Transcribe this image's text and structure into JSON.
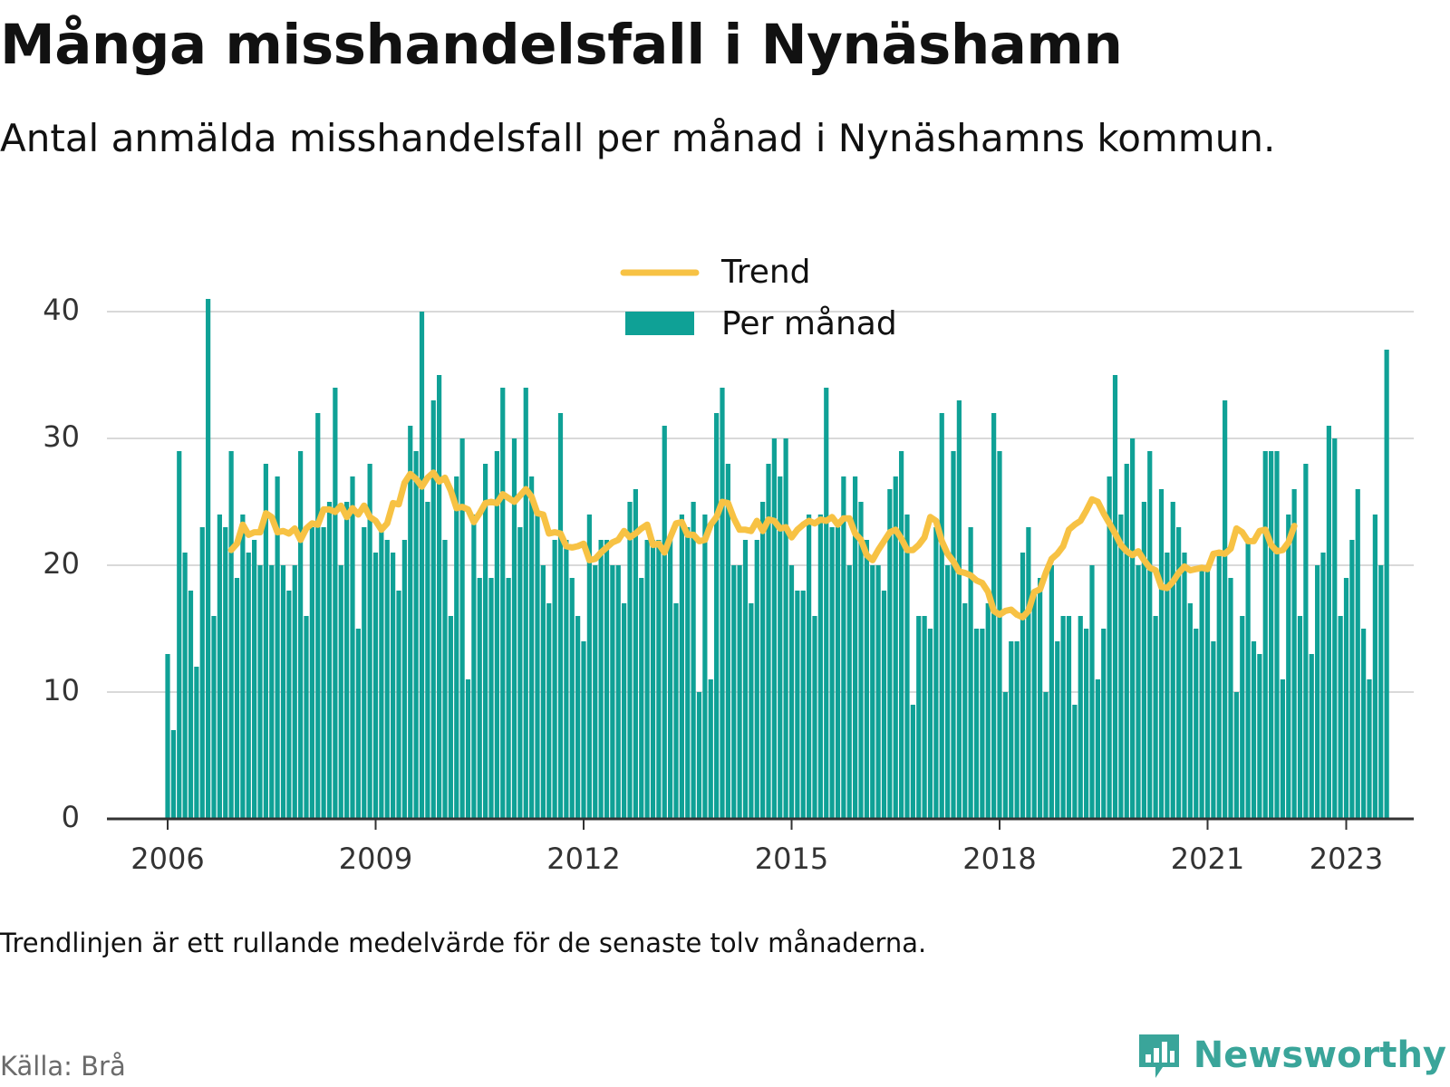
{
  "header": {
    "title": "Många misshandelsfall i Nynäshamn",
    "subtitle": "Antal anmälda misshandelsfall per månad i Nynäshamns kommun."
  },
  "footer": {
    "note": "Trendlinjen är ett rullande medelvärde för de senaste tolv månaderna.",
    "source": "Källa: Brå",
    "brand": "Newsworthy",
    "brand_icon": "bar-chart-speech-bubble-icon"
  },
  "colors": {
    "bars": "#0fa196",
    "trend": "#f7c244",
    "grid": "#d9d9d9",
    "axis": "#333333",
    "brand": "#3aa59a"
  },
  "chart_data": {
    "type": "bar",
    "x_start": "2006-01",
    "x_end": "2023-02",
    "x_ticks": [
      "2006",
      "2009",
      "2012",
      "2015",
      "2018",
      "2021",
      "2023"
    ],
    "ylim": [
      0,
      42
    ],
    "y_ticks": [
      0,
      10,
      20,
      30,
      40
    ],
    "grid": true,
    "legend_position": "top-center",
    "series": [
      {
        "name": "Per månad",
        "type": "bar",
        "values": [
          13,
          7,
          29,
          21,
          18,
          12,
          23,
          41,
          16,
          24,
          23,
          29,
          19,
          24,
          21,
          22,
          20,
          28,
          20,
          27,
          20,
          18,
          20,
          29,
          16,
          23,
          32,
          23,
          25,
          34,
          20,
          25,
          27,
          15,
          23,
          28,
          21,
          23,
          22,
          21,
          18,
          22,
          31,
          29,
          40,
          25,
          33,
          35,
          22,
          16,
          27,
          30,
          11,
          24,
          19,
          28,
          19,
          29,
          34,
          19,
          30,
          23,
          34,
          27,
          24,
          20,
          17,
          22,
          32,
          22,
          19,
          16,
          14,
          24,
          20,
          22,
          22,
          20,
          20,
          17,
          25,
          26,
          19,
          22,
          22,
          22,
          31,
          22,
          17,
          24,
          23,
          25,
          10,
          24,
          11,
          32,
          34,
          28,
          20,
          20,
          22,
          17,
          22,
          25,
          28,
          30,
          27,
          30,
          20,
          18,
          18,
          24,
          16,
          24,
          34,
          23,
          23,
          27,
          20,
          27,
          25,
          22,
          20,
          20,
          18,
          26,
          27,
          29,
          24,
          9,
          16,
          16,
          15,
          23,
          32,
          20,
          29,
          33,
          17,
          23,
          15,
          15,
          17,
          32,
          29,
          10,
          14,
          14,
          21,
          23,
          18,
          19,
          10,
          20,
          14,
          16,
          16,
          9,
          16,
          15,
          20,
          11,
          15,
          27,
          35,
          24,
          28,
          30,
          20,
          25,
          29,
          16,
          26,
          21,
          25,
          23,
          21,
          17,
          15,
          20,
          20,
          14,
          21,
          33,
          19,
          10,
          16,
          22,
          14,
          13,
          29,
          29,
          29,
          11,
          24,
          26,
          16,
          28,
          13,
          20,
          21,
          31,
          30,
          16,
          19,
          22,
          26,
          15,
          11,
          24,
          20,
          37
        ],
        "color": "#0fa196"
      },
      {
        "name": "Trend",
        "type": "line",
        "start": "2006-12",
        "values": [
          21.2,
          21.7,
          23.2,
          22.4,
          22.6,
          22.6,
          24.1,
          23.8,
          22.6,
          22.7,
          22.5,
          22.9,
          22,
          22.9,
          23.3,
          23.2,
          24.4,
          24.4,
          24.2,
          24.7,
          23.8,
          24.5,
          24,
          24.7,
          23.8,
          23.5,
          22.8,
          23.3,
          24.9,
          24.8,
          26.5,
          27.2,
          26.8,
          26.2,
          26.9,
          27.3,
          26.6,
          26.9,
          25.9,
          24.5,
          24.6,
          24.4,
          23.4,
          24.1,
          24.9,
          25,
          24.9,
          25.6,
          25.3,
          25,
          25.5,
          26,
          25.4,
          24.1,
          24,
          22.5,
          22.6,
          22.5,
          21.5,
          21.4,
          21.5,
          21.7,
          20.4,
          20.5,
          21,
          21.4,
          21.8,
          22,
          22.7,
          22.2,
          22.5,
          22.9,
          23.2,
          21.6,
          21.7,
          21,
          22.2,
          23.3,
          23.4,
          22.4,
          22.4,
          21.9,
          22,
          23.2,
          23.8,
          25,
          24.9,
          23.7,
          22.8,
          22.8,
          22.7,
          23.5,
          22.7,
          23.6,
          23.5,
          22.9,
          23,
          22.2,
          22.8,
          23.2,
          23.5,
          23.3,
          23.6,
          23.5,
          23.8,
          23.2,
          23.7,
          23.7,
          22.5,
          22,
          20.8,
          20.4,
          21.2,
          21.9,
          22.6,
          22.8,
          22.1,
          21.2,
          21.2,
          21.6,
          22.2,
          23.8,
          23.5,
          21.9,
          20.9,
          20.3,
          19.5,
          19.4,
          19.2,
          18.8,
          18.6,
          17.9,
          16.4,
          16.1,
          16.4,
          16.5,
          16.1,
          15.9,
          16.4,
          17.9,
          18.1,
          19.4,
          20.5,
          20.9,
          21.5,
          22.8,
          23.2,
          23.5,
          24.3,
          25.2,
          25,
          24.1,
          23.3,
          22.5,
          21.6,
          21.1,
          20.8,
          21.1,
          20.4,
          19.8,
          19.6,
          18.3,
          18.2,
          18.7,
          19.4,
          19.9,
          19.6,
          19.7,
          19.8,
          19.7,
          20.9,
          21,
          20.9,
          21.3,
          22.9,
          22.6,
          21.9,
          21.9,
          22.7,
          22.8,
          21.6,
          21.1,
          21.2,
          21.8,
          23.1
        ]
      }
    ]
  }
}
